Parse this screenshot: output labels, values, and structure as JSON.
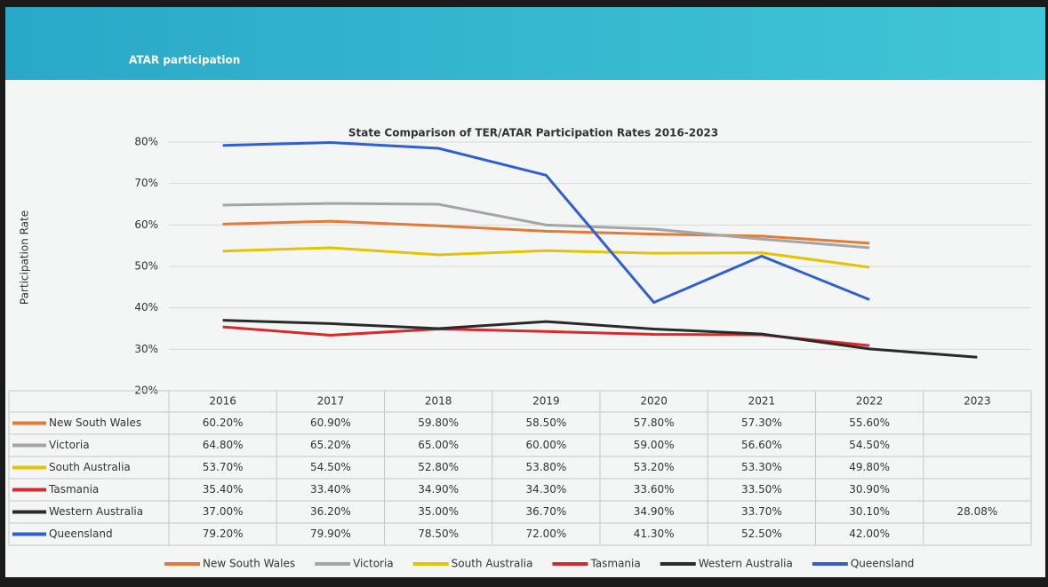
{
  "slide_title": "ATAR participation",
  "chart_data": {
    "type": "line",
    "title": "State Comparison of TER/ATAR Participation Rates 2016-2023",
    "y_label": "Participation Rate",
    "categories": [
      "2016",
      "2017",
      "2018",
      "2019",
      "2020",
      "2021",
      "2022",
      "2023"
    ],
    "ylim": [
      20,
      80
    ],
    "yticks": [
      {
        "value": 20,
        "label": "20%"
      },
      {
        "value": 30,
        "label": "30%"
      },
      {
        "value": 40,
        "label": "40%"
      },
      {
        "value": 50,
        "label": "50%"
      },
      {
        "value": 60,
        "label": "60%"
      },
      {
        "value": 70,
        "label": "70%"
      },
      {
        "value": 80,
        "label": "80%"
      }
    ],
    "grid": true,
    "legend": "bottom",
    "series": [
      {
        "name": "New South Wales",
        "color": "#e07b39",
        "values": [
          60.2,
          60.9,
          59.8,
          58.5,
          57.8,
          57.3,
          55.6,
          null
        ],
        "value_labels": [
          "60.20%",
          "60.90%",
          "59.80%",
          "58.50%",
          "57.80%",
          "57.30%",
          "55.60%",
          null
        ]
      },
      {
        "name": "Victoria",
        "color": "#a5a5a5",
        "values": [
          64.8,
          65.2,
          65.0,
          60.0,
          59.0,
          56.6,
          54.5,
          null
        ],
        "value_labels": [
          "64.80%",
          "65.20%",
          "65.00%",
          "60.00%",
          "59.00%",
          "56.60%",
          "54.50%",
          null
        ]
      },
      {
        "name": "South Australia",
        "color": "#e6c300",
        "values": [
          53.7,
          54.5,
          52.8,
          53.8,
          53.2,
          53.3,
          49.8,
          null
        ],
        "value_labels": [
          "53.70%",
          "54.50%",
          "52.80%",
          "53.80%",
          "53.20%",
          "53.30%",
          "49.80%",
          null
        ]
      },
      {
        "name": "Tasmania",
        "color": "#d9292b",
        "values": [
          35.4,
          33.4,
          34.9,
          34.3,
          33.6,
          33.5,
          30.9,
          null
        ],
        "value_labels": [
          "35.40%",
          "33.40%",
          "34.90%",
          "34.30%",
          "33.60%",
          "33.50%",
          "30.90%",
          null
        ]
      },
      {
        "name": "Western Australia",
        "color": "#2a2a2a",
        "values": [
          37.0,
          36.2,
          35.0,
          36.7,
          34.9,
          33.7,
          30.1,
          28.08
        ],
        "value_labels": [
          "37.00%",
          "36.20%",
          "35.00%",
          "36.70%",
          "34.90%",
          "33.70%",
          "30.10%",
          "28.08%"
        ]
      },
      {
        "name": "Queensland",
        "color": "#2f5fd0",
        "values": [
          79.2,
          79.9,
          78.5,
          72.0,
          41.3,
          52.5,
          42.0,
          null
        ],
        "value_labels": [
          "79.20%",
          "79.90%",
          "78.50%",
          "72.00%",
          "41.30%",
          "52.50%",
          "42.00%",
          null
        ]
      }
    ]
  }
}
